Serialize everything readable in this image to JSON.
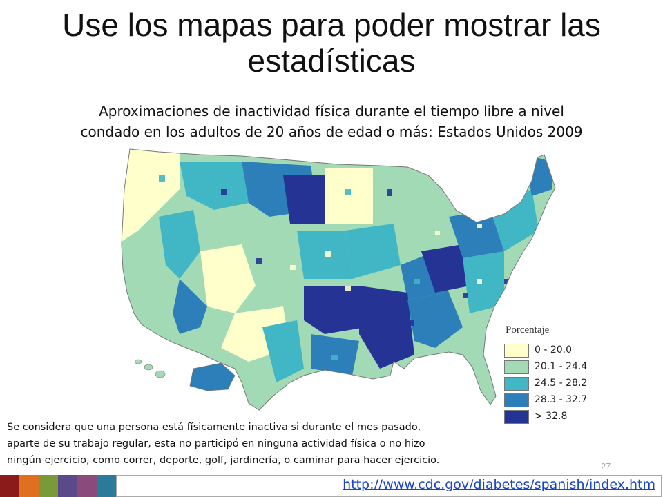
{
  "slide": {
    "title_line1": "Use los mapas para poder mostrar las",
    "title_line2": "estadísticas",
    "page_number": "27"
  },
  "map": {
    "title_line1": "Aproximaciones de inactividad física durante el tiempo libre a nivel",
    "title_line2": "condado en los adultos de 20 años de edad o más: Estados Unidos 2009"
  },
  "legend": {
    "title": "Porcentaje",
    "items": [
      {
        "label": "0 - 20.0",
        "color": "#ffffcc"
      },
      {
        "label": "20.1 - 24.4",
        "color": "#a1dab4"
      },
      {
        "label": "24.5 - 28.2",
        "color": "#41b6c4"
      },
      {
        "label": "28.3 - 32.7",
        "color": "#2c7fb8"
      },
      {
        "label": "> 32.8",
        "color": "#253494"
      }
    ]
  },
  "footnote": {
    "line1": "Se considera que una persona está físicamente inactiva si durante el mes pasado,",
    "line2": "aparte de su trabajo regular, esta no participó en ninguna actividad física o no hizo",
    "line3": "ningún ejercicio, como correr, deporte, golf, jardinería, o caminar para hacer ejercicio."
  },
  "footer": {
    "url": "http://www.cdc.gov/diabetes/spanish/index.htm",
    "strip_colors": [
      "#8b1a1a",
      "#e07020",
      "#7a9a3a",
      "#5a4a8a",
      "#8a4a7a",
      "#2a7a9a"
    ]
  }
}
